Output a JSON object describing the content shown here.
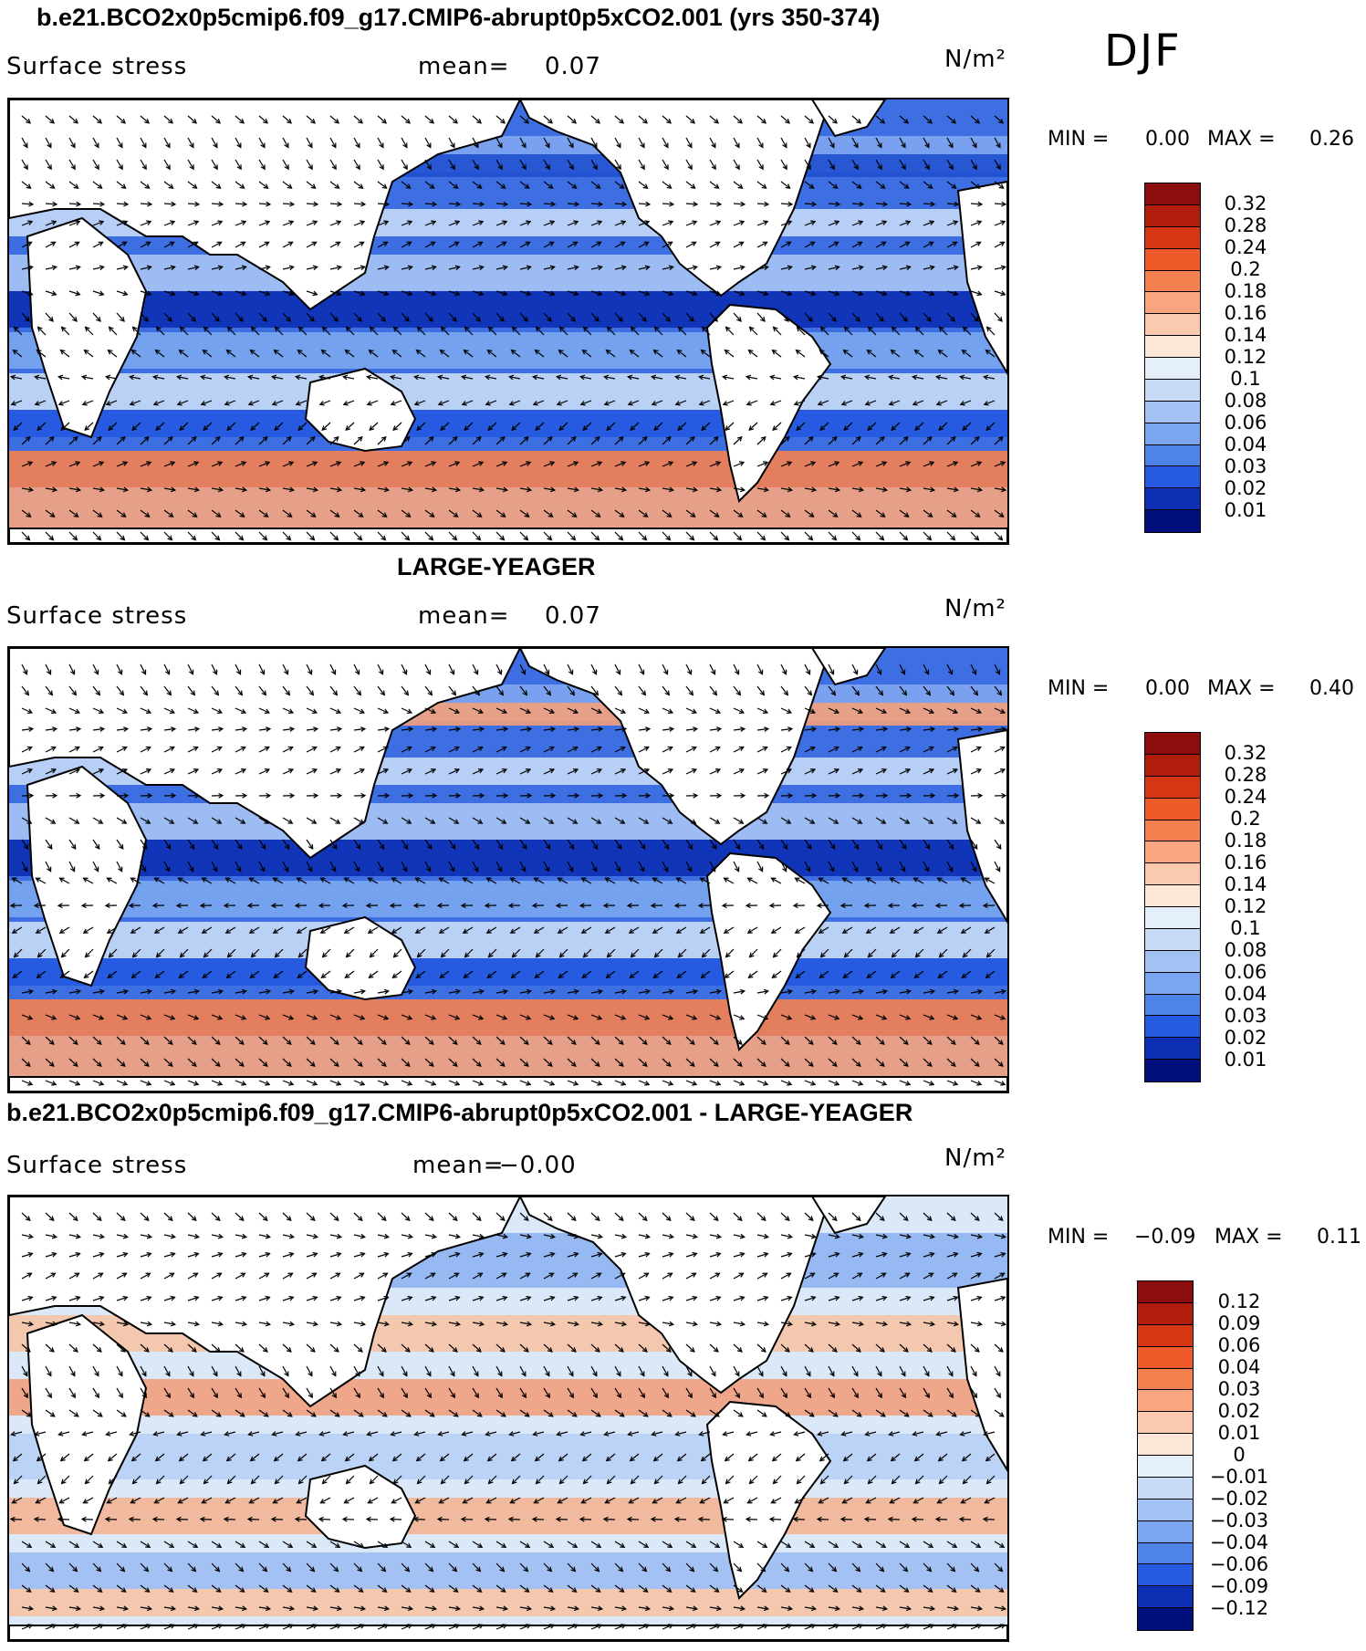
{
  "season": "DJF",
  "panels": [
    {
      "title": "b.e21.BCO2x0p5cmip6.f09_g17.CMIP6-abrupt0p5xCO2.001 (yrs 350-374)",
      "field": "Surface stress",
      "mean_label": "mean=",
      "mean_value": "0.07",
      "units": "N/m²",
      "min_label": "MIN =",
      "min_value": "0.00",
      "max_label": "MAX =",
      "max_value": "0.26",
      "levels": [
        "0.32",
        "0.28",
        "0.24",
        "0.2",
        "0.18",
        "0.16",
        "0.14",
        "0.12",
        "0.1",
        "0.08",
        "0.06",
        "0.04",
        "0.03",
        "0.02",
        "0.01"
      ],
      "colors": [
        "#8b0d0d",
        "#b01d0d",
        "#d63614",
        "#ef5a2a",
        "#f5804f",
        "#f8a580",
        "#fbcaae",
        "#fde8d7",
        "#e4effa",
        "#c7dbf7",
        "#a2c2f4",
        "#7aa6ef",
        "#4e83ea",
        "#2459e0",
        "#0c2fb4",
        "#000f7a"
      ]
    },
    {
      "title": "LARGE-YEAGER",
      "field": "Surface stress",
      "mean_label": "mean=",
      "mean_value": "0.07",
      "units": "N/m²",
      "min_label": "MIN =",
      "min_value": "0.00",
      "max_label": "MAX =",
      "max_value": "0.40",
      "levels": [
        "0.32",
        "0.28",
        "0.24",
        "0.2",
        "0.18",
        "0.16",
        "0.14",
        "0.12",
        "0.1",
        "0.08",
        "0.06",
        "0.04",
        "0.03",
        "0.02",
        "0.01"
      ],
      "colors": [
        "#8b0d0d",
        "#b01d0d",
        "#d63614",
        "#ef5a2a",
        "#f5804f",
        "#f8a580",
        "#fbcaae",
        "#fde8d7",
        "#e4effa",
        "#c7dbf7",
        "#a2c2f4",
        "#7aa6ef",
        "#4e83ea",
        "#2459e0",
        "#0c2fb4",
        "#000f7a"
      ]
    },
    {
      "title": "b.e21.BCO2x0p5cmip6.f09_g17.CMIP6-abrupt0p5xCO2.001 - LARGE-YEAGER",
      "field": "Surface stress",
      "mean_label": "mean=",
      "mean_value": "−0.00",
      "units": "N/m²",
      "min_label": "MIN =",
      "min_value": "−0.09",
      "max_label": "MAX =",
      "max_value": "0.11",
      "levels": [
        "0.12",
        "0.09",
        "0.06",
        "0.04",
        "0.03",
        "0.02",
        "0.01",
        "0",
        "−0.01",
        "−0.02",
        "−0.03",
        "−0.04",
        "−0.06",
        "−0.09",
        "−0.12"
      ],
      "colors": [
        "#8b0d0d",
        "#b01d0d",
        "#d63614",
        "#ef5a2a",
        "#f5804f",
        "#f8a580",
        "#fbcaae",
        "#fde8d7",
        "#e4effa",
        "#c7dbf7",
        "#a2c2f4",
        "#7aa6ef",
        "#4e83ea",
        "#2459e0",
        "#0c2fb4",
        "#000f7a"
      ]
    }
  ]
}
